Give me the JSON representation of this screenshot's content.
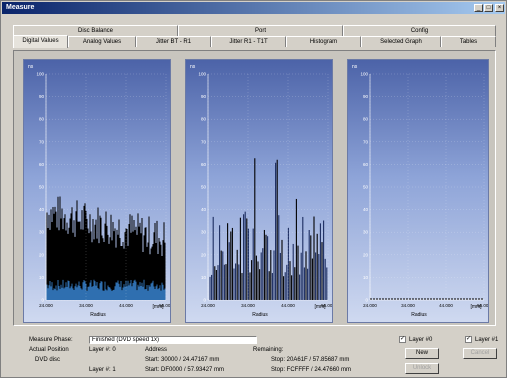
{
  "window": {
    "title": "Measure"
  },
  "tabs_top": [
    "Disc Balance",
    "Port",
    "Config"
  ],
  "tabs_bottom": [
    "Digital Values",
    "Analog Values",
    "Jitter BT - R1",
    "Jitter R1 - T1T",
    "Histogram",
    "Selected Graph",
    "Tables"
  ],
  "charts": [
    {
      "unit": "ns",
      "y_ticks": [
        "100",
        "90",
        "80",
        "70",
        "60",
        "50",
        "40",
        "30",
        "20",
        "10",
        "0"
      ],
      "x_ticks": [
        "24.000",
        "34.000",
        "44.000",
        "56.000"
      ],
      "xlabel": "Radius",
      "xunit": "[mm]"
    },
    {
      "unit": "ns",
      "y_ticks": [
        "100",
        "90",
        "80",
        "70",
        "60",
        "50",
        "40",
        "30",
        "20",
        "10",
        "0"
      ],
      "x_ticks": [
        "24.000",
        "34.000",
        "44.000",
        "56.000"
      ],
      "xlabel": "Radius",
      "xunit": "[mm]"
    },
    {
      "unit": "ns",
      "y_ticks": [
        "100",
        "90",
        "80",
        "70",
        "60",
        "50",
        "40",
        "30",
        "20",
        "10",
        "0"
      ],
      "x_ticks": [
        "24.000",
        "34.000",
        "44.000",
        "56.000"
      ],
      "xlabel": "Radius",
      "xunit": "[mm]"
    }
  ],
  "status": {
    "measure_phase_label": "Measure Phase:",
    "measure_phase_value": "Finished (DVD speed 1x)",
    "actual_position_label": "Actual Position",
    "layer0_label": "Layer #: 0",
    "address_label": "Address",
    "start0": "Start: 30000 / 24.47167 mm",
    "remaining_label": "Remaining:",
    "stop0": "Stop: 20A61F / 57.85687 mm",
    "dvd_disc_label": "DVD disc",
    "layer1_label": "Layer #: 1",
    "start1": "Start: DF0000 / 57.93427 mm",
    "stop1": "Stop: FCFFFF / 24.47660 mm",
    "layer0_check": "Layer #0",
    "layer1_check": "Layer #1",
    "new_button": "New",
    "cancel_button": "Cancel",
    "unlock_button": "Unlock"
  }
}
